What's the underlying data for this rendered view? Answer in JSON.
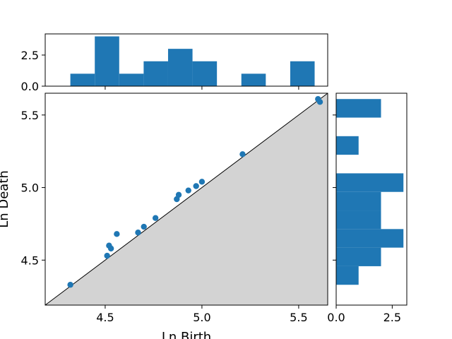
{
  "chart_data": {
    "type": "scatter",
    "title": "",
    "xlabel": "Ln Birth",
    "ylabel": "Ln Death",
    "xlim": [
      4.19,
      5.65
    ],
    "ylim": [
      4.19,
      5.65
    ],
    "grid": false,
    "diagonal_fill_color": "#d3d3d3",
    "point_color": "#1f77b4",
    "bar_color": "#1f77b4",
    "points": [
      {
        "x": 4.32,
        "y": 4.33
      },
      {
        "x": 4.51,
        "y": 4.53
      },
      {
        "x": 4.52,
        "y": 4.6
      },
      {
        "x": 4.53,
        "y": 4.58
      },
      {
        "x": 4.56,
        "y": 4.68
      },
      {
        "x": 4.67,
        "y": 4.69
      },
      {
        "x": 4.7,
        "y": 4.73
      },
      {
        "x": 4.76,
        "y": 4.79
      },
      {
        "x": 4.87,
        "y": 4.92
      },
      {
        "x": 4.88,
        "y": 4.95
      },
      {
        "x": 4.93,
        "y": 4.98
      },
      {
        "x": 4.97,
        "y": 5.01
      },
      {
        "x": 5.0,
        "y": 5.04
      },
      {
        "x": 5.21,
        "y": 5.23
      },
      {
        "x": 5.6,
        "y": 5.61
      },
      {
        "x": 5.61,
        "y": 5.59
      }
    ],
    "xticks": [
      4.5,
      5.0,
      5.5
    ],
    "xtick_labels": [
      "4.5",
      "5.0",
      "5.5"
    ],
    "yticks": [
      4.5,
      5.0,
      5.5
    ],
    "ytick_labels": [
      "4.5",
      "5.0",
      "5.5"
    ],
    "top_histogram": {
      "bin_edges": [
        4.32,
        4.4463,
        4.5725,
        4.6988,
        4.825,
        4.9513,
        5.0775,
        5.2038,
        5.33,
        5.4563,
        5.5825
      ],
      "counts": [
        1,
        4,
        1,
        2,
        3,
        2,
        0,
        1,
        0,
        2
      ],
      "ylim": [
        0,
        4.2
      ],
      "yticks": [
        0,
        2.5
      ],
      "ytick_labels": [
        "0.0",
        "2.5"
      ]
    },
    "right_histogram": {
      "bin_edges": [
        4.33,
        4.458,
        4.586,
        4.714,
        4.842,
        4.97,
        5.098,
        5.226,
        5.354,
        5.482,
        5.61
      ],
      "counts": [
        1,
        2,
        3,
        2,
        2,
        3,
        0,
        1,
        0,
        2
      ],
      "xlim": [
        0,
        3.15
      ],
      "xticks": [
        0,
        2.5
      ],
      "xtick_labels": [
        "0.0",
        "2.5"
      ]
    }
  }
}
